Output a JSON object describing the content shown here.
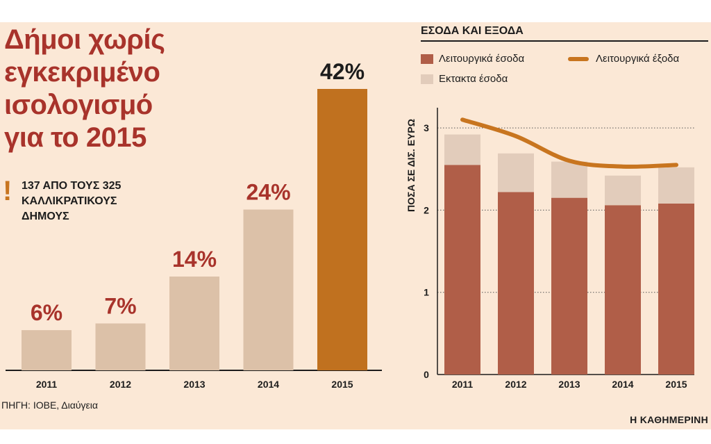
{
  "left": {
    "title": "Δήμοι χωρίς\nεγκεκριμένο\nισολογισμό\nγια το 2015",
    "exclaim": "!",
    "subtitle": "137 ΑΠΟ ΤΟΥΣ 325\nΚΑΛΛΙΚΡΑΤΙΚΟΥΣ\nΔΗΜΟΥΣ"
  },
  "right": {
    "header": "ΕΣΟΔΑ ΚΑΙ ΕΞΟΔΑ"
  },
  "source": "ΠΗΓΗ: ΙΟΒΕ, Διαύγεια",
  "brand": "Η ΚΑΘΗΜΕΡΙΝΗ",
  "chart_data": [
    {
      "type": "bar",
      "categories": [
        "2011",
        "2012",
        "2013",
        "2014",
        "2015"
      ],
      "values": [
        6,
        7,
        14,
        24,
        42
      ],
      "value_labels": [
        "6%",
        "7%",
        "14%",
        "24%",
        "42%"
      ],
      "colors": [
        "#dcc1a8",
        "#dcc1a8",
        "#dcc1a8",
        "#dcc1a8",
        "#c0711f"
      ],
      "label_colors": [
        "#a8332b",
        "#a8332b",
        "#a8332b",
        "#a8332b",
        "#1c1c1c"
      ],
      "ylim": [
        0,
        42
      ]
    },
    {
      "type": "bar",
      "stacked": true,
      "categories": [
        "2011",
        "2012",
        "2013",
        "2014",
        "2015"
      ],
      "ylabel": "ΠΟΣΑ ΣΕ ΔΙΣ. ΕΥΡΩ",
      "ylim": [
        0,
        3.3
      ],
      "yticks": [
        0,
        1,
        2,
        3
      ],
      "series": [
        {
          "name": "Λειτουργικά έσοδα",
          "kind": "bar",
          "color": "#b05e48",
          "values": [
            2.55,
            2.22,
            2.15,
            2.06,
            2.08
          ]
        },
        {
          "name": "Εκτακτα έσοδα",
          "kind": "bar",
          "color": "#e2ccbb",
          "values": [
            0.37,
            0.47,
            0.44,
            0.36,
            0.44
          ]
        },
        {
          "name": "Λειτουργικά έξοδα",
          "kind": "line",
          "color": "#c8751f",
          "values": [
            3.1,
            2.9,
            2.6,
            2.53,
            2.55
          ]
        }
      ],
      "grid": true
    }
  ]
}
